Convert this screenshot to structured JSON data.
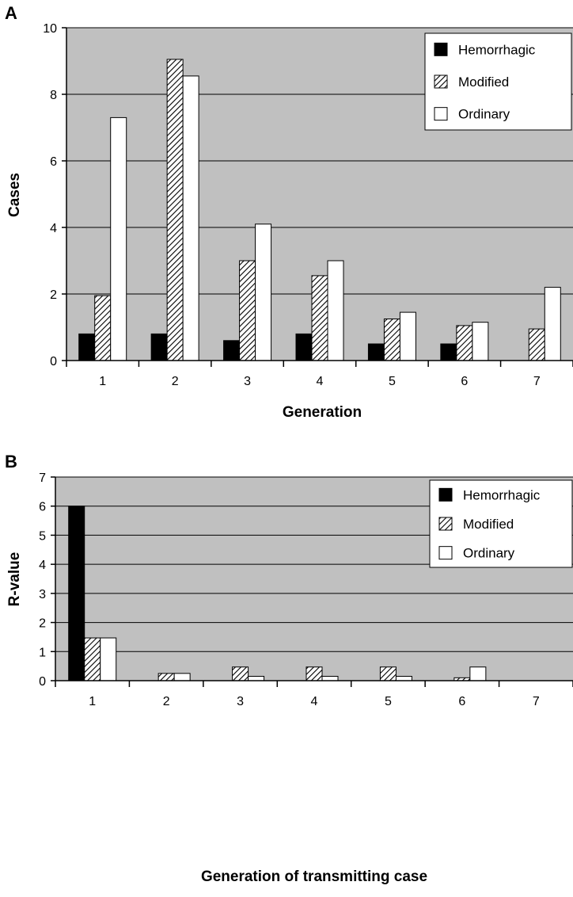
{
  "chart_data": [
    {
      "panel": "A",
      "type": "bar",
      "xlabel": "Generation",
      "ylabel": "Cases",
      "ylim": [
        0,
        10
      ],
      "yticks": [
        0,
        2,
        4,
        6,
        8,
        10
      ],
      "categories": [
        "1",
        "2",
        "3",
        "4",
        "5",
        "6",
        "7"
      ],
      "grid": true,
      "legend_position": "top-right",
      "series": [
        {
          "name": "Hemorrhagic",
          "style": "solid",
          "color": "#000000",
          "values": [
            0.8,
            0.8,
            0.6,
            0.8,
            0.5,
            0.5,
            0
          ]
        },
        {
          "name": "Modified",
          "style": "hatched",
          "color": "#000000",
          "values": [
            1.95,
            9.05,
            3.0,
            2.55,
            1.25,
            1.05,
            0.95
          ]
        },
        {
          "name": "Ordinary",
          "style": "open",
          "color": "#ffffff",
          "values": [
            7.3,
            8.55,
            4.1,
            3.0,
            1.45,
            1.15,
            2.2
          ]
        }
      ]
    },
    {
      "panel": "B",
      "type": "bar",
      "xlabel": "Generation of transmitting case",
      "ylabel": "R-value",
      "ylim": [
        0,
        7
      ],
      "yticks": [
        0,
        1,
        2,
        3,
        4,
        5,
        6,
        7
      ],
      "categories": [
        "1",
        "2",
        "3",
        "4",
        "5",
        "6",
        "7"
      ],
      "grid": true,
      "legend_position": "top-right",
      "series": [
        {
          "name": "Hemorrhagic",
          "style": "solid",
          "color": "#000000",
          "values": [
            6.0,
            0,
            0,
            0,
            0,
            0,
            0
          ]
        },
        {
          "name": "Modified",
          "style": "hatched",
          "color": "#000000",
          "values": [
            1.47,
            0.25,
            0.47,
            0.47,
            0.47,
            0.1,
            0
          ]
        },
        {
          "name": "Ordinary",
          "style": "open",
          "color": "#ffffff",
          "values": [
            1.47,
            0.25,
            0.15,
            0.15,
            0.15,
            0.47,
            0
          ]
        }
      ]
    }
  ],
  "colors": {
    "plot_background": "#c0c0c0",
    "gridline": "#000000",
    "bar_outline": "#000000"
  }
}
